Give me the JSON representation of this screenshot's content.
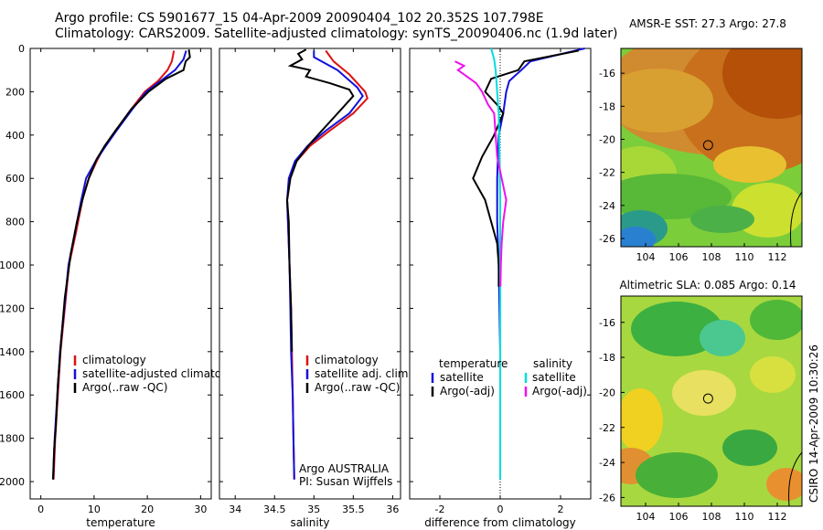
{
  "header": {
    "line1": "Argo profile: CS 5901677_15 04-Apr-2009 20090404_102 20.352S 107.798E",
    "line2": "Climatology: CARS2009. Satellite-adjusted climatology: synTS_20090406.nc (1.9d later)"
  },
  "credit": "CSIRO 14-Apr-2009 10:30:26",
  "colors": {
    "clim": "#dd1111",
    "sat": "#1111dd",
    "argo": "#000000",
    "sat_sal": "#00dddd",
    "argo_sal": "#ee11ee"
  },
  "chart_data": [
    {
      "type": "line",
      "name": "temperature-profile",
      "xlabel": "temperature",
      "ylabel": "",
      "xlim": [
        -2,
        32
      ],
      "ylim": [
        2080,
        0
      ],
      "xticks": [
        0,
        10,
        20,
        30
      ],
      "xtick_labels": [
        "0",
        "10",
        "20",
        "30"
      ],
      "yticks": [
        0,
        200,
        400,
        600,
        800,
        1000,
        1200,
        1400,
        1600,
        1800,
        2000
      ],
      "ytick_labels": [
        "0",
        "200",
        "400",
        "600",
        "800",
        "1000",
        "1200",
        "1400",
        "1600",
        "1800",
        "2000"
      ],
      "legend": [
        "climatology",
        "satellite-adjusted climatology",
        "Argo(..raw -QC)"
      ],
      "series": [
        {
          "name": "climatology",
          "color": "#dd1111",
          "points": [
            [
              25.0,
              10
            ],
            [
              24.6,
              60
            ],
            [
              23.8,
              100
            ],
            [
              22.0,
              150
            ],
            [
              19.5,
              200
            ],
            [
              17.0,
              280
            ],
            [
              14.0,
              380
            ],
            [
              12.0,
              450
            ],
            [
              10.5,
              520
            ],
            [
              9.0,
              600
            ],
            [
              7.8,
              700
            ],
            [
              6.6,
              850
            ],
            [
              5.3,
              1000
            ],
            [
              4.5,
              1200
            ],
            [
              3.7,
              1400
            ],
            [
              3.2,
              1600
            ],
            [
              2.7,
              1800
            ],
            [
              2.4,
              1990
            ]
          ]
        },
        {
          "name": "satellite-adjusted climatology",
          "color": "#1111dd",
          "points": [
            [
              27.3,
              10
            ],
            [
              26.8,
              50
            ],
            [
              25.2,
              100
            ],
            [
              22.5,
              150
            ],
            [
              19.8,
              200
            ],
            [
              17.2,
              280
            ],
            [
              14.2,
              380
            ],
            [
              12.2,
              450
            ],
            [
              10.3,
              520
            ],
            [
              8.5,
              600
            ],
            [
              7.6,
              700
            ],
            [
              6.4,
              850
            ],
            [
              5.2,
              1000
            ],
            [
              4.4,
              1200
            ],
            [
              3.6,
              1400
            ],
            [
              3.1,
              1600
            ],
            [
              2.6,
              1800
            ],
            [
              2.3,
              1990
            ]
          ]
        },
        {
          "name": "Argo(..raw -QC)",
          "color": "#000000",
          "points": [
            [
              27.8,
              5
            ],
            [
              28.0,
              40
            ],
            [
              27.2,
              60
            ],
            [
              26.8,
              100
            ],
            [
              23.5,
              140
            ],
            [
              20.2,
              200
            ],
            [
              17.0,
              280
            ],
            [
              14.0,
              380
            ],
            [
              12.0,
              450
            ],
            [
              10.5,
              510
            ],
            [
              9.0,
              600
            ],
            [
              7.9,
              690
            ],
            [
              6.8,
              800
            ],
            [
              5.6,
              950
            ],
            [
              4.5,
              1150
            ],
            [
              3.8,
              1350
            ],
            [
              3.2,
              1550
            ],
            [
              2.8,
              1750
            ],
            [
              2.5,
              1850
            ],
            [
              2.3,
              1990
            ]
          ]
        }
      ]
    },
    {
      "type": "line",
      "name": "salinity-profile",
      "xlabel": "salinity",
      "ylabel": "",
      "xlim": [
        33.8,
        36.1
      ],
      "ylim": [
        2080,
        0
      ],
      "xticks": [
        34,
        34.5,
        35,
        35.5,
        36
      ],
      "xtick_labels": [
        "34",
        "34.5",
        "35",
        "35.5",
        "36"
      ],
      "legend": [
        "climatology",
        "satellite adj. clim.",
        "Argo(..raw -QC)"
      ],
      "annotations": [
        "Argo AUSTRALIA",
        "PI: Susan Wijffels"
      ],
      "series": [
        {
          "name": "climatology",
          "color": "#dd1111",
          "points": [
            [
              35.15,
              10
            ],
            [
              35.25,
              60
            ],
            [
              35.45,
              120
            ],
            [
              35.65,
              200
            ],
            [
              35.68,
              230
            ],
            [
              35.5,
              300
            ],
            [
              35.2,
              380
            ],
            [
              34.95,
              450
            ],
            [
              34.78,
              520
            ],
            [
              34.7,
              600
            ],
            [
              34.66,
              700
            ],
            [
              34.67,
              800
            ],
            [
              34.69,
              1000
            ],
            [
              34.71,
              1200
            ],
            [
              34.72,
              1400
            ],
            [
              34.73,
              1600
            ],
            [
              34.74,
              1800
            ],
            [
              34.75,
              1990
            ]
          ]
        },
        {
          "name": "satellite adj. clim.",
          "color": "#1111dd",
          "points": [
            [
              35.0,
              10
            ],
            [
              35.0,
              40
            ],
            [
              35.3,
              100
            ],
            [
              35.55,
              180
            ],
            [
              35.62,
              220
            ],
            [
              35.45,
              300
            ],
            [
              35.15,
              380
            ],
            [
              34.92,
              450
            ],
            [
              34.76,
              520
            ],
            [
              34.68,
              600
            ],
            [
              34.66,
              700
            ],
            [
              34.67,
              800
            ],
            [
              34.69,
              1000
            ],
            [
              34.7,
              1200
            ],
            [
              34.71,
              1400
            ],
            [
              34.73,
              1600
            ],
            [
              34.74,
              1800
            ],
            [
              34.75,
              1990
            ]
          ]
        },
        {
          "name": "Argo(..raw -QC)",
          "color": "#000000",
          "points": [
            [
              34.9,
              5
            ],
            [
              34.8,
              25
            ],
            [
              34.85,
              50
            ],
            [
              34.7,
              80
            ],
            [
              34.95,
              100
            ],
            [
              34.9,
              130
            ],
            [
              35.2,
              160
            ],
            [
              35.45,
              190
            ],
            [
              35.5,
              220
            ],
            [
              35.35,
              280
            ],
            [
              35.1,
              380
            ],
            [
              34.95,
              440
            ],
            [
              34.78,
              520
            ],
            [
              34.7,
              600
            ],
            [
              34.66,
              700
            ],
            [
              34.68,
              800
            ],
            [
              34.69,
              1000
            ],
            [
              34.71,
              1200
            ],
            [
              34.72,
              1400
            ]
          ]
        }
      ]
    },
    {
      "type": "line",
      "name": "difference-profile",
      "xlabel": "difference from climatology",
      "ylabel": "",
      "xlim": [
        -3,
        3
      ],
      "ylim": [
        2080,
        0
      ],
      "xticks": [
        -2,
        0,
        2
      ],
      "xtick_labels": [
        "-2",
        "0",
        "2"
      ],
      "legend_temperature": [
        "temperature",
        "satellite",
        "Argo(-adj)"
      ],
      "legend_salinity": [
        "salinity",
        "satellite",
        "Argo(-adj)"
      ],
      "series": [
        {
          "name": "temperature satellite",
          "color": "#1111dd",
          "points": [
            [
              2.8,
              0
            ],
            [
              1.0,
              60
            ],
            [
              0.7,
              100
            ],
            [
              0.3,
              150
            ],
            [
              0.2,
              200
            ],
            [
              0.1,
              300
            ],
            [
              -0.05,
              400
            ],
            [
              -0.1,
              600
            ],
            [
              -0.1,
              800
            ],
            [
              -0.05,
              1000
            ],
            [
              0,
              1400
            ],
            [
              0,
              1990
            ]
          ]
        },
        {
          "name": "temperature Argo(-adj)",
          "color": "#000000",
          "points": [
            [
              2.6,
              10
            ],
            [
              0.8,
              60
            ],
            [
              0.6,
              100
            ],
            [
              -0.3,
              140
            ],
            [
              -0.5,
              200
            ],
            [
              -0.1,
              260
            ],
            [
              0.1,
              300
            ],
            [
              -0.2,
              400
            ],
            [
              -0.6,
              500
            ],
            [
              -0.9,
              600
            ],
            [
              -0.5,
              700
            ],
            [
              -0.3,
              800
            ],
            [
              -0.1,
              900
            ],
            [
              -0.05,
              1000
            ],
            [
              -0.05,
              1100
            ]
          ]
        },
        {
          "name": "salinity satellite",
          "color": "#00dddd",
          "points": [
            [
              -0.3,
              0
            ],
            [
              -0.2,
              50
            ],
            [
              -0.15,
              100
            ],
            [
              -0.1,
              200
            ],
            [
              -0.05,
              300
            ],
            [
              -0.02,
              500
            ],
            [
              0,
              700
            ],
            [
              0,
              1000
            ],
            [
              0,
              1400
            ],
            [
              0,
              1990
            ]
          ]
        },
        {
          "name": "salinity Argo(-adj)",
          "color": "#ee11ee",
          "points": [
            [
              -1.5,
              60
            ],
            [
              -1.2,
              80
            ],
            [
              -1.4,
              100
            ],
            [
              -1.1,
              130
            ],
            [
              -0.8,
              160
            ],
            [
              -0.6,
              200
            ],
            [
              -0.4,
              260
            ],
            [
              -0.2,
              300
            ],
            [
              -0.15,
              400
            ],
            [
              -0.1,
              500
            ],
            [
              0.05,
              600
            ],
            [
              0.2,
              700
            ],
            [
              0.1,
              800
            ],
            [
              0.05,
              900
            ],
            [
              0.02,
              1000
            ],
            [
              0.01,
              1100
            ]
          ]
        }
      ]
    },
    {
      "type": "heatmap",
      "name": "sst-map",
      "title": "AMSR-E SST: 27.3 Argo: 27.8",
      "xlim": [
        102.5,
        113.5
      ],
      "ylim": [
        -26.5,
        -14.5
      ],
      "xticks": [
        104,
        106,
        108,
        110,
        112
      ],
      "xtick_labels": [
        "104",
        "106",
        "108",
        "110",
        "112"
      ],
      "yticks": [
        -16,
        -18,
        -20,
        -22,
        -24,
        -26
      ],
      "ytick_labels": [
        "-16",
        "-18",
        "-20",
        "-22",
        "-24",
        "-26"
      ],
      "marker": {
        "lon": 107.798,
        "lat": -20.352
      }
    },
    {
      "type": "heatmap",
      "name": "sla-map",
      "title": "Altimetric SLA: 0.085 Argo: 0.14",
      "xlim": [
        102.5,
        113.5
      ],
      "ylim": [
        -26.5,
        -14.5
      ],
      "xticks": [
        104,
        106,
        108,
        110,
        112
      ],
      "xtick_labels": [
        "104",
        "106",
        "108",
        "110",
        "112"
      ],
      "yticks": [
        -16,
        -18,
        -20,
        -22,
        -24,
        -26
      ],
      "ytick_labels": [
        "-16",
        "-18",
        "-20",
        "-22",
        "-24",
        "-26"
      ],
      "marker": {
        "lon": 107.798,
        "lat": -20.352
      }
    }
  ]
}
